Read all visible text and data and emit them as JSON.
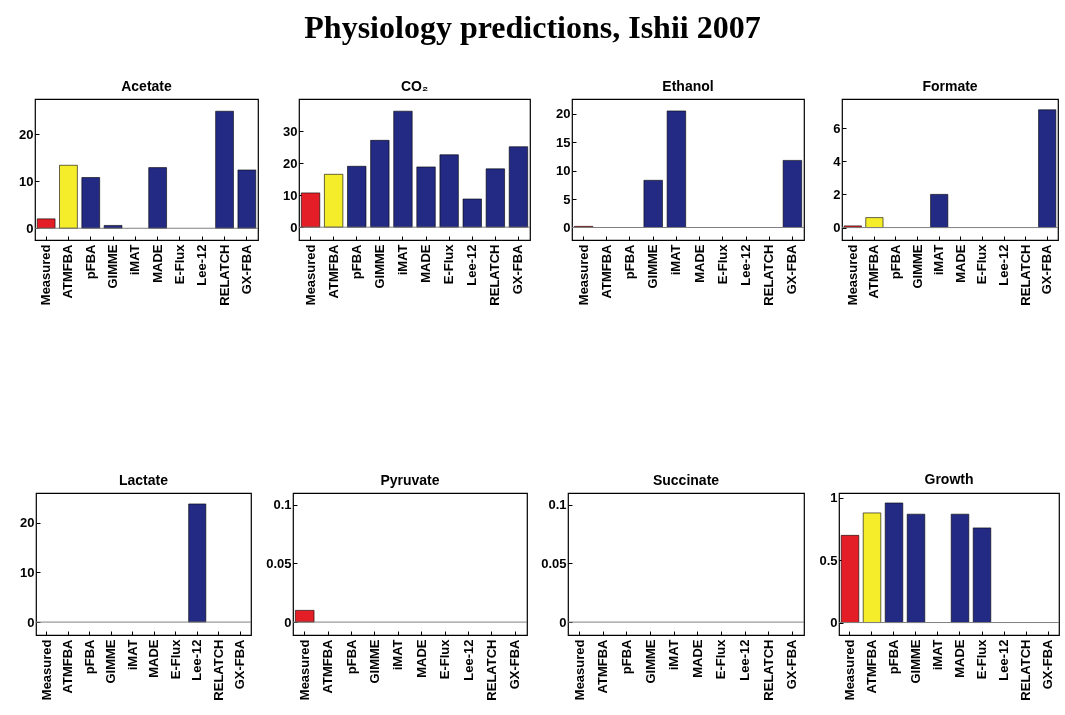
{
  "chart_data": [
    {
      "type": "other",
      "title": "Physiology predictions, Ishii 2007"
    },
    {
      "type": "bar",
      "title": "Acetate",
      "categories": [
        "Measured",
        "ATMFBA",
        "pFBA",
        "GIMME",
        "iMAT",
        "MADE",
        "E-Flux",
        "Lee-12",
        "RELATCH",
        "GX-FBA"
      ],
      "values": [
        2.0,
        13.4,
        10.8,
        0.6,
        null,
        12.9,
        null,
        null,
        24.9,
        12.4
      ],
      "colors": [
        "#e41e26",
        "#f5ec2a",
        "#232a83",
        "#232a83",
        "#232a83",
        "#232a83",
        "#232a83",
        "#232a83",
        "#232a83",
        "#232a83"
      ],
      "ylim": [
        -2.5,
        27.5
      ],
      "yticks": [
        0,
        10,
        20
      ],
      "ref_lines": [
        {
          "axis": "y",
          "value": 0,
          "color": "#808080"
        }
      ]
    },
    {
      "type": "bar",
      "title": "CO₂",
      "categories": [
        "Measured",
        "ATMFBA",
        "pFBA",
        "GIMME",
        "iMAT",
        "MADE",
        "E-Flux",
        "Lee-12",
        "RELATCH",
        "GX-FBA"
      ],
      "values": [
        10.7,
        16.5,
        19.0,
        27.1,
        36.2,
        18.8,
        22.6,
        8.8,
        18.2,
        25.1
      ],
      "colors": [
        "#e41e26",
        "#f5ec2a",
        "#232a83",
        "#232a83",
        "#232a83",
        "#232a83",
        "#232a83",
        "#232a83",
        "#232a83",
        "#232a83"
      ],
      "ylim": [
        -4,
        40
      ],
      "yticks": [
        0,
        10,
        20,
        30
      ],
      "ref_lines": [
        {
          "axis": "y",
          "value": 0,
          "color": "#808080"
        }
      ]
    },
    {
      "type": "bar",
      "title": "Ethanol",
      "categories": [
        "Measured",
        "ATMFBA",
        "pFBA",
        "GIMME",
        "iMAT",
        "MADE",
        "E-Flux",
        "Lee-12",
        "RELATCH",
        "GX-FBA"
      ],
      "values": [
        0.2,
        null,
        null,
        8.3,
        20.5,
        null,
        null,
        null,
        null,
        11.8
      ],
      "colors": [
        "#e41e26",
        "#f5ec2a",
        "#232a83",
        "#232a83",
        "#232a83",
        "#232a83",
        "#232a83",
        "#232a83",
        "#232a83",
        "#232a83"
      ],
      "ylim": [
        -2.2,
        22.6
      ],
      "yticks": [
        0,
        5,
        10,
        15,
        20
      ],
      "ref_lines": [
        {
          "axis": "y",
          "value": 0,
          "color": "#808080"
        }
      ]
    },
    {
      "type": "bar",
      "title": "Formate",
      "categories": [
        "Measured",
        "ATMFBA",
        "pFBA",
        "GIMME",
        "iMAT",
        "MADE",
        "E-Flux",
        "Lee-12",
        "RELATCH",
        "GX-FBA"
      ],
      "values": [
        0.1,
        0.6,
        null,
        null,
        2.0,
        null,
        null,
        null,
        null,
        7.1
      ],
      "colors": [
        "#e41e26",
        "#f5ec2a",
        "#232a83",
        "#232a83",
        "#232a83",
        "#232a83",
        "#232a83",
        "#232a83",
        "#232a83",
        "#232a83"
      ],
      "ylim": [
        -0.75,
        7.75
      ],
      "yticks": [
        0,
        2,
        4,
        6
      ],
      "ref_lines": [
        {
          "axis": "y",
          "value": 0,
          "color": "#808080"
        }
      ]
    },
    {
      "type": "bar",
      "title": "Lactate",
      "categories": [
        "Measured",
        "ATMFBA",
        "pFBA",
        "GIMME",
        "iMAT",
        "MADE",
        "E-Flux",
        "Lee-12",
        "RELATCH",
        "GX-FBA"
      ],
      "values": [
        null,
        null,
        null,
        null,
        null,
        null,
        null,
        23.8,
        null,
        null
      ],
      "colors": [
        "#e41e26",
        "#f5ec2a",
        "#232a83",
        "#232a83",
        "#232a83",
        "#232a83",
        "#232a83",
        "#232a83",
        "#232a83",
        "#232a83"
      ],
      "ylim": [
        -2.6,
        26
      ],
      "yticks": [
        0,
        10,
        20
      ],
      "ref_lines": [
        {
          "axis": "y",
          "value": 0,
          "color": "#808080"
        }
      ]
    },
    {
      "type": "bar",
      "title": "Pyruvate",
      "categories": [
        "Measured",
        "ATMFBA",
        "pFBA",
        "GIMME",
        "iMAT",
        "MADE",
        "E-Flux",
        "Lee-12",
        "RELATCH",
        "GX-FBA"
      ],
      "values": [
        0.01,
        null,
        null,
        null,
        null,
        null,
        null,
        null,
        null,
        null
      ],
      "colors": [
        "#e41e26",
        "#f5ec2a",
        "#232a83",
        "#232a83",
        "#232a83",
        "#232a83",
        "#232a83",
        "#232a83",
        "#232a83",
        "#232a83"
      ],
      "ylim": [
        -0.011,
        0.11
      ],
      "yticks": [
        0,
        0.05,
        0.1
      ],
      "ref_lines": [
        {
          "axis": "y",
          "value": 0,
          "color": "#808080"
        }
      ]
    },
    {
      "type": "bar",
      "title": "Succinate",
      "categories": [
        "Measured",
        "ATMFBA",
        "pFBA",
        "GIMME",
        "iMAT",
        "MADE",
        "E-Flux",
        "Lee-12",
        "RELATCH",
        "GX-FBA"
      ],
      "values": [
        null,
        null,
        null,
        null,
        null,
        null,
        null,
        null,
        null,
        null
      ],
      "colors": [
        "#e41e26",
        "#f5ec2a",
        "#232a83",
        "#232a83",
        "#232a83",
        "#232a83",
        "#232a83",
        "#232a83",
        "#232a83",
        "#232a83"
      ],
      "ylim": [
        -0.011,
        0.11
      ],
      "yticks": [
        0,
        0.05,
        0.1
      ],
      "ref_lines": [
        {
          "axis": "y",
          "value": 0,
          "color": "#808080"
        }
      ]
    },
    {
      "type": "bar",
      "title": "Growth",
      "categories": [
        "Measured",
        "ATMFBA",
        "pFBA",
        "GIMME",
        "iMAT",
        "MADE",
        "E-Flux",
        "Lee-12",
        "RELATCH",
        "GX-FBA"
      ],
      "values": [
        0.7,
        0.88,
        0.96,
        0.87,
        null,
        0.87,
        0.76,
        null,
        null,
        null
      ],
      "colors": [
        "#e41e26",
        "#f5ec2a",
        "#232a83",
        "#232a83",
        "#232a83",
        "#232a83",
        "#232a83",
        "#232a83",
        "#232a83",
        "#232a83"
      ],
      "ylim": [
        -0.1,
        1.04
      ],
      "yticks": [
        0,
        0.5,
        1
      ],
      "ref_lines": [
        {
          "axis": "y",
          "value": 0,
          "color": "#808080"
        }
      ]
    }
  ]
}
